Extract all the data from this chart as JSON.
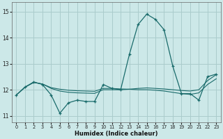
{
  "xlabel": "Humidex (Indice chaleur)",
  "xlim": [
    -0.5,
    23.5
  ],
  "ylim": [
    10.75,
    15.35
  ],
  "yticks": [
    11,
    12,
    13,
    14,
    15
  ],
  "xticks": [
    0,
    1,
    2,
    3,
    4,
    5,
    6,
    7,
    8,
    9,
    10,
    11,
    12,
    13,
    14,
    15,
    16,
    17,
    18,
    19,
    20,
    21,
    22,
    23
  ],
  "bg_color": "#cce8e8",
  "grid_color": "#aacccc",
  "line_color": "#1a6b6b",
  "line1_x": [
    0,
    1,
    2,
    3,
    4,
    5,
    6,
    7,
    8,
    9,
    10,
    11,
    12,
    13,
    14,
    15,
    16,
    17,
    18,
    19,
    20,
    21,
    22,
    23
  ],
  "line1_y": [
    11.8,
    12.1,
    12.3,
    12.2,
    11.8,
    11.1,
    11.5,
    11.6,
    11.55,
    11.55,
    12.2,
    12.05,
    12.0,
    13.35,
    14.5,
    14.9,
    14.7,
    14.3,
    12.9,
    11.85,
    11.85,
    11.6,
    12.5,
    12.6
  ],
  "line2_x": [
    0,
    1,
    2,
    3,
    4,
    5,
    6,
    7,
    8,
    9,
    10,
    11,
    12,
    13,
    14,
    15,
    16,
    17,
    18,
    19,
    20,
    21,
    22,
    23
  ],
  "line2_y": [
    11.8,
    12.1,
    12.28,
    12.22,
    12.05,
    11.95,
    11.9,
    11.88,
    11.87,
    11.86,
    12.0,
    12.0,
    12.0,
    12.02,
    12.05,
    12.07,
    12.05,
    12.03,
    12.0,
    11.97,
    11.95,
    12.0,
    12.35,
    12.58
  ],
  "line3_x": [
    0,
    1,
    2,
    3,
    4,
    5,
    6,
    7,
    8,
    9,
    10,
    11,
    12,
    13,
    14,
    15,
    16,
    17,
    18,
    19,
    20,
    21,
    22,
    23
  ],
  "line3_y": [
    11.8,
    12.1,
    12.28,
    12.22,
    12.08,
    12.02,
    11.98,
    11.96,
    11.95,
    11.94,
    12.05,
    12.05,
    12.03,
    12.02,
    12.0,
    12.0,
    11.98,
    11.95,
    11.9,
    11.85,
    11.82,
    11.88,
    12.2,
    12.42
  ]
}
